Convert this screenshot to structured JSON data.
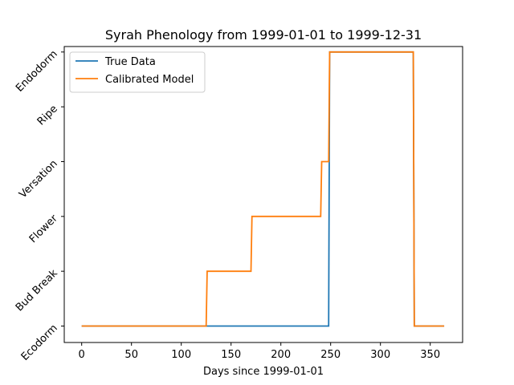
{
  "chart_data": {
    "type": "line",
    "title": "Syrah Phenology from 1999-01-01 to 1999-12-31",
    "xlabel": "Days since 1999-01-01",
    "ylabel": "",
    "xlim": [
      -17.5,
      382.5
    ],
    "ylim": [
      -0.3,
      5.1
    ],
    "xticks": [
      0,
      50,
      100,
      150,
      200,
      250,
      300,
      350
    ],
    "y_categories": [
      "Ecodorm",
      "Bud Break",
      "Flower",
      "Versation",
      "Ripe",
      "Endodorm"
    ],
    "grid": false,
    "legend_position": "top-left",
    "series": [
      {
        "name": "True Data",
        "color": "#1f77b4",
        "points": [
          [
            0,
            0
          ],
          [
            248,
            0
          ],
          [
            249,
            5
          ],
          [
            333,
            5
          ],
          [
            334,
            0
          ],
          [
            364,
            0
          ]
        ]
      },
      {
        "name": "Calibrated Model",
        "color": "#ff7f0e",
        "points": [
          [
            0,
            0
          ],
          [
            125,
            0
          ],
          [
            126,
            1
          ],
          [
            170,
            1
          ],
          [
            171,
            2
          ],
          [
            240,
            2
          ],
          [
            241,
            3
          ],
          [
            248,
            3
          ],
          [
            249,
            5
          ],
          [
            333,
            5
          ],
          [
            334,
            0
          ],
          [
            364,
            0
          ]
        ]
      }
    ]
  }
}
